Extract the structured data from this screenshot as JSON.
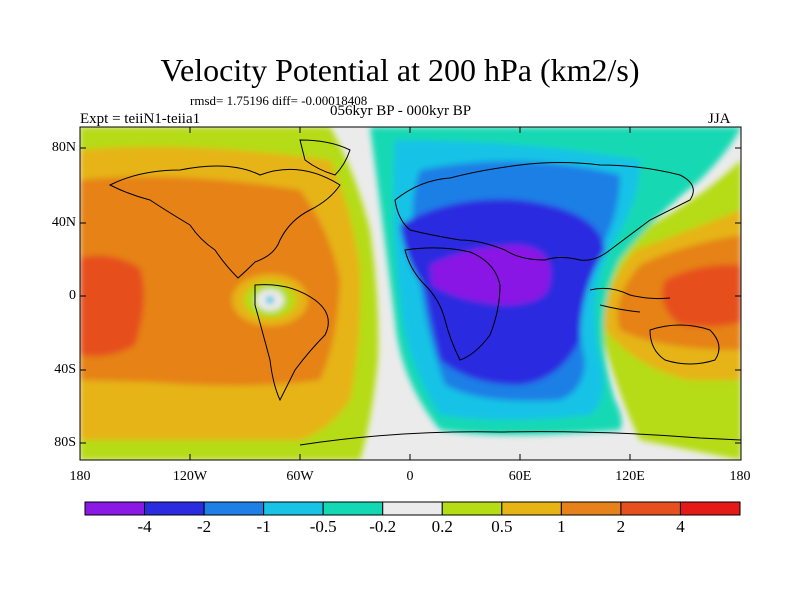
{
  "title": "Velocity Potential at 200 hPa (km2/s)",
  "stats": "rmsd= 1.75196 diff= -0.00018408",
  "period": "056kyr BP - 000kyr BP",
  "experiment": "Expt = teiiN1-teiia1",
  "season": "JJA",
  "lat_ticks": [
    "80N",
    "40N",
    "0",
    "40S",
    "80S"
  ],
  "lon_ticks": [
    "180",
    "120W",
    "60W",
    "0",
    "60E",
    "120E",
    "180"
  ],
  "colorbar": {
    "labels": [
      "-4",
      "-2",
      "-1",
      "-0.5",
      "-0.2",
      "0.2",
      "0.5",
      "1",
      "2",
      "4"
    ],
    "colors": [
      "#8a19e6",
      "#2b2be0",
      "#1e7fe6",
      "#19c3e6",
      "#12d9b4",
      "#ebebeb",
      "#b5dc14",
      "#e6b414",
      "#e68219",
      "#e6501e",
      "#e61919"
    ]
  }
}
